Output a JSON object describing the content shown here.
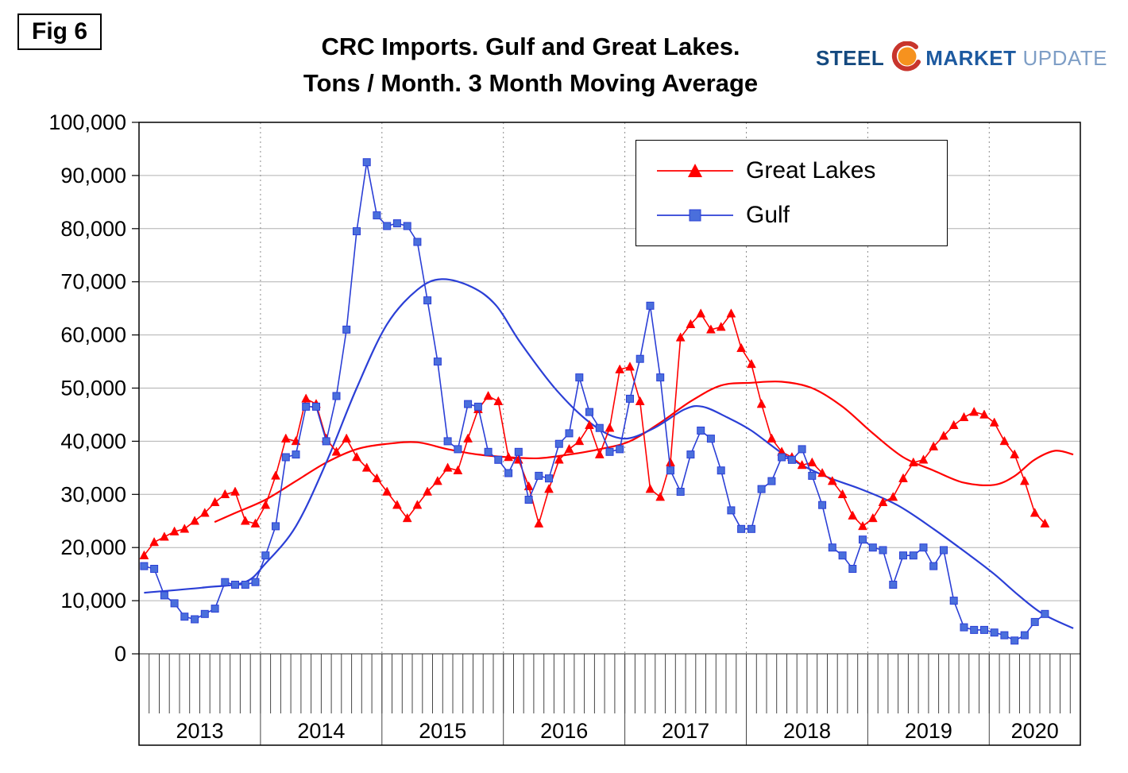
{
  "figure_label": "Fig 6",
  "title": {
    "line1": "CRC Imports. Gulf and Great Lakes.",
    "line2": "Tons / Month. 3 Month Moving Average"
  },
  "logo": {
    "steel": "STEEL",
    "market": "MARKET",
    "update": "UPDATE"
  },
  "colors": {
    "great_lakes": "#FF0000",
    "gulf_line": "#2B3FD6",
    "gulf_marker_fill": "#4A6FDC",
    "grid_horizontal": "#B0B0B0",
    "grid_vertical_dotted": "#8C8C8C",
    "frame": "#000000"
  },
  "chart_data": {
    "type": "line",
    "title": "CRC Imports. Gulf and Great Lakes. Tons / Month. 3 Month Moving Average",
    "xlabel": "",
    "ylabel": "Tons / Month",
    "ylim": [
      0,
      100000
    ],
    "y_tick_step": 10000,
    "y_tick_labels": [
      "0",
      "10,000",
      "20,000",
      "30,000",
      "40,000",
      "50,000",
      "60,000",
      "70,000",
      "80,000",
      "90,000",
      "100,000"
    ],
    "x_start_year": 2013,
    "x_slots_months": 93,
    "x_year_labels": [
      "2013",
      "2014",
      "2015",
      "2016",
      "2017",
      "2018",
      "2019",
      "2020"
    ],
    "grid": {
      "horizontal": true,
      "vertical_year_dotted": true
    },
    "legend_position": "top-right-inside",
    "series": [
      {
        "name": "Great Lakes",
        "type": "markers",
        "marker": "triangle",
        "color": "#FF0000",
        "marker_fill": "#FF0000",
        "values": [
          18500,
          21000,
          22000,
          23000,
          23500,
          25000,
          26500,
          28500,
          30000,
          30500,
          25000,
          24500,
          28000,
          33500,
          40500,
          40000,
          48000,
          47000,
          40500,
          38000,
          40500,
          37000,
          35000,
          33000,
          30500,
          28000,
          25500,
          28000,
          30500,
          32500,
          35000,
          34500,
          40500,
          46000,
          48500,
          47500,
          37000,
          36500,
          31500,
          24500,
          31000,
          36500,
          38500,
          40000,
          43000,
          37500,
          42500,
          53500,
          54000,
          47500,
          31000,
          29500,
          36000,
          59500,
          62000,
          64000,
          61000,
          61500,
          64000,
          57500,
          54500,
          47000,
          40500,
          38000,
          37000,
          35500,
          36000,
          34000,
          32500,
          30000,
          26000,
          24000,
          25500,
          28500,
          29500,
          33000,
          36000,
          36500,
          39000,
          41000,
          43000,
          44500,
          45500,
          45000,
          43500,
          40000,
          37500,
          32500,
          26500,
          24500
        ]
      },
      {
        "name": "Gulf",
        "type": "markers",
        "marker": "square",
        "color": "#2B3FD6",
        "marker_fill": "#4A6FDC",
        "values": [
          16500,
          16000,
          11000,
          9500,
          7000,
          6500,
          7500,
          8500,
          13500,
          13000,
          13000,
          13500,
          18500,
          24000,
          37000,
          37500,
          46500,
          46500,
          40000,
          48500,
          61000,
          79500,
          92500,
          82500,
          80500,
          81000,
          80500,
          77500,
          66500,
          55000,
          40000,
          38500,
          47000,
          46500,
          38000,
          36500,
          34000,
          38000,
          29000,
          33500,
          33000,
          39500,
          41500,
          52000,
          45500,
          42500,
          38000,
          38500,
          48000,
          55500,
          65500,
          52000,
          34500,
          30500,
          37500,
          42000,
          40500,
          34500,
          27000,
          23500,
          23500,
          31000,
          32500,
          37000,
          36500,
          38500,
          33500,
          28000,
          20000,
          18500,
          16000,
          21500,
          20000,
          19500,
          13000,
          18500,
          18500,
          20000,
          16500,
          19500,
          10000,
          5000,
          4500,
          4500,
          4000,
          3500,
          2500,
          3500,
          6000,
          7500
        ]
      },
      {
        "name": "Great Lakes trend",
        "type": "smooth",
        "color": "#FF0000",
        "points": [
          [
            2013.58,
            24800
          ],
          [
            2013.75,
            26500
          ],
          [
            2014.0,
            29000
          ],
          [
            2014.25,
            32500
          ],
          [
            2014.5,
            36000
          ],
          [
            2014.75,
            38500
          ],
          [
            2015.0,
            39500
          ],
          [
            2015.25,
            39800
          ],
          [
            2015.5,
            38500
          ],
          [
            2015.75,
            37500
          ],
          [
            2016.0,
            37000
          ],
          [
            2016.25,
            36800
          ],
          [
            2016.5,
            37500
          ],
          [
            2016.75,
            38500
          ],
          [
            2017.0,
            40000
          ],
          [
            2017.25,
            43500
          ],
          [
            2017.5,
            47500
          ],
          [
            2017.75,
            50500
          ],
          [
            2018.0,
            51000
          ],
          [
            2018.25,
            51200
          ],
          [
            2018.5,
            50000
          ],
          [
            2018.75,
            46500
          ],
          [
            2019.0,
            41500
          ],
          [
            2019.25,
            37000
          ],
          [
            2019.5,
            34500
          ],
          [
            2019.75,
            32200
          ],
          [
            2020.0,
            31800
          ],
          [
            2020.17,
            33500
          ],
          [
            2020.33,
            36500
          ],
          [
            2020.5,
            38200
          ],
          [
            2020.65,
            37500
          ]
        ]
      },
      {
        "name": "Gulf trend",
        "type": "smooth",
        "color": "#2B3FD6",
        "points": [
          [
            2013.0,
            11500
          ],
          [
            2013.5,
            12500
          ],
          [
            2013.83,
            13500
          ],
          [
            2014.0,
            17000
          ],
          [
            2014.25,
            24000
          ],
          [
            2014.5,
            36000
          ],
          [
            2014.75,
            50000
          ],
          [
            2015.0,
            62000
          ],
          [
            2015.25,
            68500
          ],
          [
            2015.45,
            70500
          ],
          [
            2015.7,
            69000
          ],
          [
            2015.9,
            65500
          ],
          [
            2016.1,
            58500
          ],
          [
            2016.4,
            49500
          ],
          [
            2016.7,
            43000
          ],
          [
            2016.95,
            40500
          ],
          [
            2017.2,
            42500
          ],
          [
            2017.45,
            46000
          ],
          [
            2017.6,
            46500
          ],
          [
            2017.8,
            44500
          ],
          [
            2018.0,
            42000
          ],
          [
            2018.3,
            37000
          ],
          [
            2018.6,
            33500
          ],
          [
            2018.9,
            31000
          ],
          [
            2019.2,
            28000
          ],
          [
            2019.5,
            23500
          ],
          [
            2019.8,
            18500
          ],
          [
            2020.0,
            15000
          ],
          [
            2020.2,
            11000
          ],
          [
            2020.4,
            7500
          ],
          [
            2020.65,
            4800
          ]
        ]
      }
    ]
  }
}
